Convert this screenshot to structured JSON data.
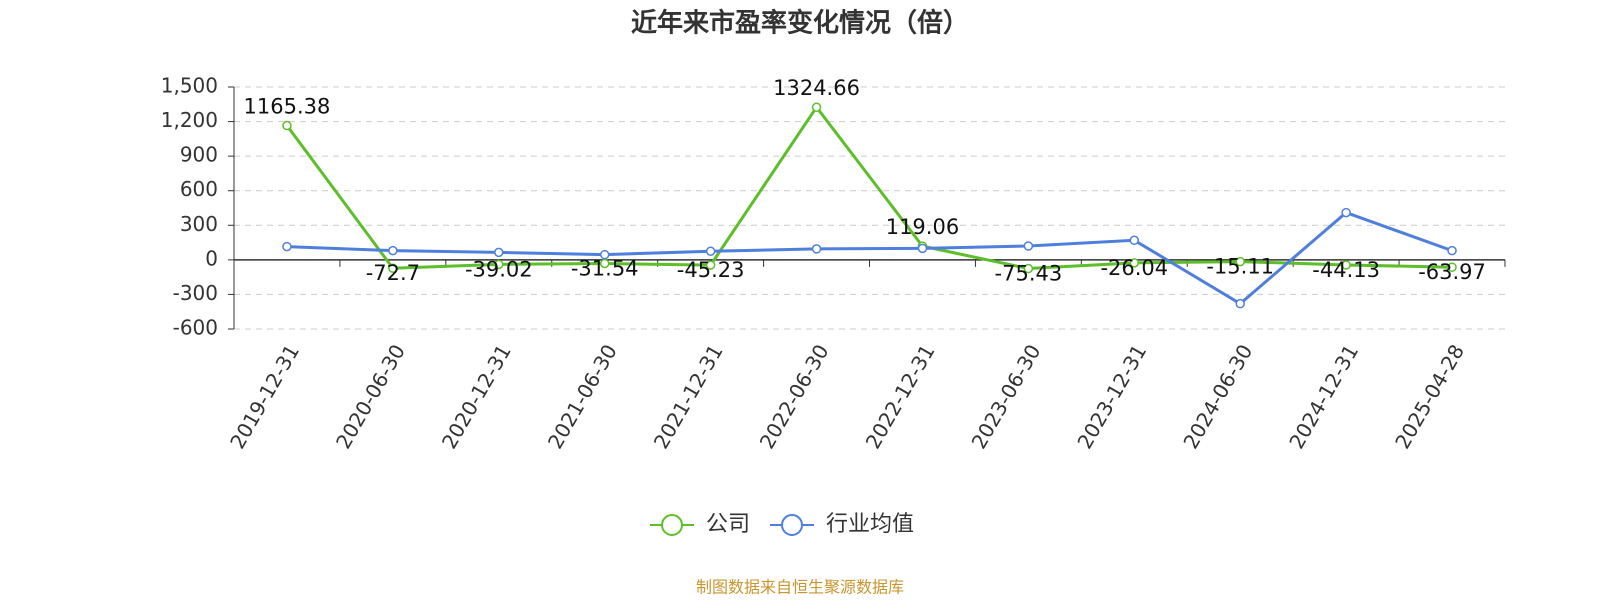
{
  "chart_data": {
    "type": "line",
    "title": "近年来市盈率变化情况（倍）",
    "categories": [
      "2019-12-31",
      "2020-06-30",
      "2020-12-31",
      "2021-06-30",
      "2021-12-31",
      "2022-06-30",
      "2022-12-31",
      "2023-06-30",
      "2023-12-31",
      "2024-06-30",
      "2024-12-31",
      "2025-04-28"
    ],
    "series": [
      {
        "name": "公司",
        "color": "#5cbf2a",
        "values": [
          1165.38,
          -72.7,
          -39.02,
          -31.54,
          -45.23,
          1324.66,
          119.06,
          -75.43,
          -26.04,
          -15.11,
          -44.13,
          -63.97
        ],
        "show_labels": true
      },
      {
        "name": "行业均值",
        "color": "#4f7fdc",
        "values": [
          115,
          80,
          65,
          45,
          75,
          95,
          100,
          120,
          170,
          -380,
          410,
          80
        ]
      }
    ],
    "ylim": [
      -600,
      1500
    ],
    "yticks": [
      -600,
      -300,
      0,
      300,
      600,
      900,
      {
        "value": 1200,
        "label": "1,200"
      },
      {
        "value": 1500,
        "label": "1,500"
      }
    ],
    "grid": true,
    "legend": "bottom"
  },
  "source": "制图数据来自恒生聚源数据库"
}
